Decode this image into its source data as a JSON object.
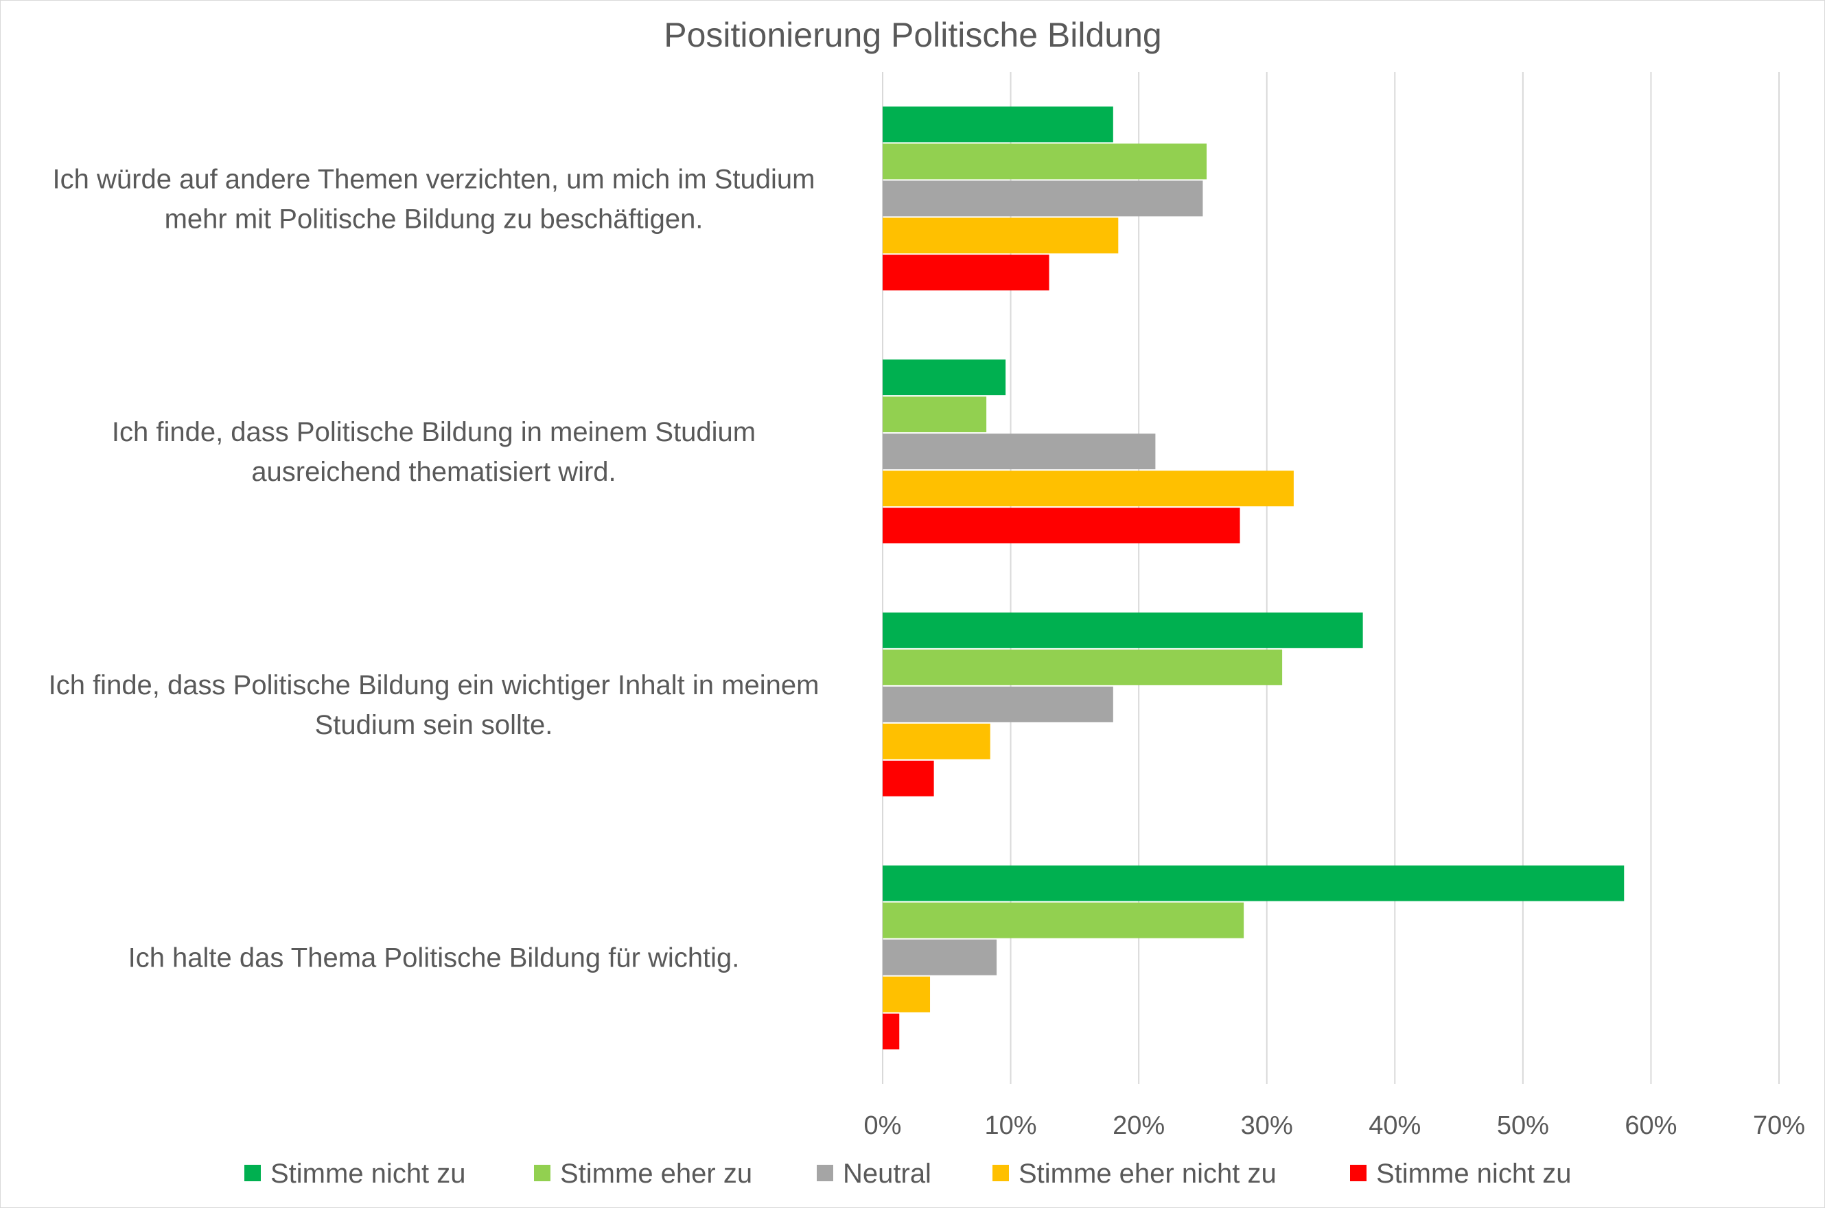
{
  "chart_data": {
    "type": "bar",
    "orientation": "horizontal",
    "title": "Positionierung Politische Bildung",
    "categories": [
      [
        "Ich würde auf andere Themen verzichten, um mich im Studium",
        "mehr mit Politische Bildung zu beschäftigen."
      ],
      [
        "Ich finde, dass Politische Bildung in meinem Studium",
        "ausreichend thematisiert wird."
      ],
      [
        "Ich finde, dass Politische Bildung ein wichtiger Inhalt in meinem",
        "Studium sein sollte."
      ],
      [
        "Ich halte das Thema Politische Bildung für wichtig."
      ]
    ],
    "series": [
      {
        "name": "Stimme nicht zu",
        "color": "#00b050",
        "values": [
          0.18,
          0.096,
          0.375,
          0.579
        ]
      },
      {
        "name": "Stimme eher zu",
        "color": "#92d050",
        "values": [
          0.253,
          0.081,
          0.312,
          0.282
        ]
      },
      {
        "name": "Neutral",
        "color": "#a5a5a5",
        "values": [
          0.25,
          0.213,
          0.18,
          0.089
        ]
      },
      {
        "name": "Stimme eher nicht zu",
        "color": "#ffc000",
        "values": [
          0.184,
          0.321,
          0.084,
          0.037
        ]
      },
      {
        "name": "Stimme nicht zu",
        "color": "#ff0000",
        "values": [
          0.13,
          0.279,
          0.04,
          0.013
        ]
      }
    ],
    "xlim": [
      0,
      0.7
    ],
    "xticks": [
      0,
      0.1,
      0.2,
      0.3,
      0.4,
      0.5,
      0.6,
      0.7
    ],
    "xtick_labels": [
      "0%",
      "10%",
      "20%",
      "30%",
      "40%",
      "50%",
      "60%",
      "70%"
    ],
    "grid": true,
    "legend_position": "bottom"
  }
}
